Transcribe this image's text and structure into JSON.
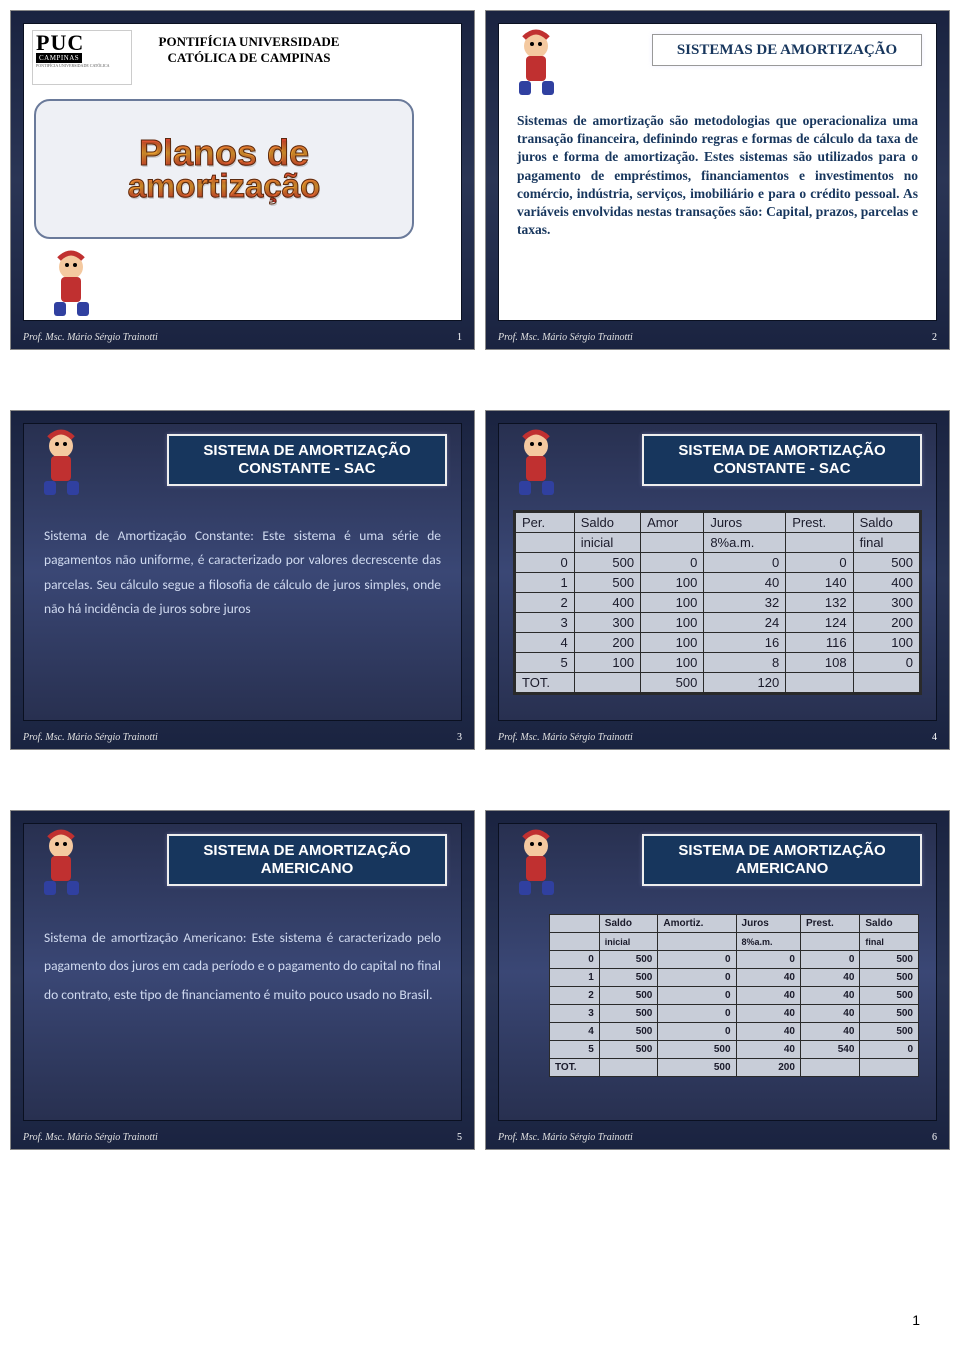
{
  "logo": {
    "puc": "PUC",
    "campinas": "CAMPINAS",
    "sub": "PONTIFÍCIA UNIVERSIDADE CATÓLICA"
  },
  "university": "PONTIFÍCIA UNIVERSIDADE CATÓLICA DE CAMPINAS",
  "footer_author": "Prof. Msc. Mário Sérgio Trainotti",
  "page_number": "1",
  "slide1": {
    "num": "1",
    "wordart1": "Planos de",
    "wordart2": "amortização"
  },
  "slide2": {
    "num": "2",
    "title": "SISTEMAS DE AMORTIZAÇÃO",
    "body": "Sistemas de amortização são metodologias que operacionaliza uma transação financeira, definindo regras e formas de cálculo da taxa de juros e forma de amortização. Estes sistemas são utilizados para o pagamento de empréstimos, financiamentos e investimentos   no comércio, indústria, serviços, imobiliário e para o crédito pessoal. As variáveis envolvidas nestas transações são: Capital, prazos, parcelas e taxas."
  },
  "slide3": {
    "num": "3",
    "title_l1": "SISTEMA DE AMORTIZAÇÃO",
    "title_l2": "CONSTANTE - SAC",
    "body": "Sistema de Amortização Constante: Este sistema é uma série de pagamentos não uniforme, é caracterizado por valores decrescente das parcelas. Seu cálculo segue a filosofia de cálculo de juros simples, onde não há incidência de juros sobre juros"
  },
  "slide4": {
    "num": "4",
    "title_l1": "SISTEMA DE AMORTIZAÇÃO",
    "title_l2": "CONSTANTE - SAC",
    "headers1": [
      "Per.",
      "Saldo",
      "Amor",
      "Juros",
      "Prest.",
      "Saldo"
    ],
    "headers2": [
      "",
      "inicial",
      "",
      "8%a.m.",
      "",
      "final"
    ],
    "rows": [
      [
        "0",
        "500",
        "0",
        "0",
        "0",
        "500"
      ],
      [
        "1",
        "500",
        "100",
        "40",
        "140",
        "400"
      ],
      [
        "2",
        "400",
        "100",
        "32",
        "132",
        "300"
      ],
      [
        "3",
        "300",
        "100",
        "24",
        "124",
        "200"
      ],
      [
        "4",
        "200",
        "100",
        "16",
        "116",
        "100"
      ],
      [
        "5",
        "100",
        "100",
        "8",
        "108",
        "0"
      ]
    ],
    "total": [
      "TOT.",
      "",
      "500",
      "120",
      "",
      ""
    ]
  },
  "slide5": {
    "num": "5",
    "title_l1": "SISTEMA DE AMORTIZAÇÃO",
    "title_l2": "AMERICANO",
    "body": "Sistema de amortização Americano: Este sistema é caracterizado pelo pagamento dos juros em cada período e o pagamento do capital no final do contrato, este tipo de financiamento é muito pouco usado no Brasil."
  },
  "slide6": {
    "num": "6",
    "title_l1": "SISTEMA DE AMORTIZAÇÃO",
    "title_l2": "AMERICANO",
    "headers1": [
      "",
      "Saldo",
      "Amortiz.",
      "Juros",
      "Prest.",
      "Saldo"
    ],
    "headers2": [
      "",
      "inicial",
      "",
      "8%a.m.",
      "",
      "final"
    ],
    "rows": [
      [
        "0",
        "500",
        "0",
        "0",
        "0",
        "500"
      ],
      [
        "1",
        "500",
        "0",
        "40",
        "40",
        "500"
      ],
      [
        "2",
        "500",
        "0",
        "40",
        "40",
        "500"
      ],
      [
        "3",
        "500",
        "0",
        "40",
        "40",
        "500"
      ],
      [
        "4",
        "500",
        "0",
        "40",
        "40",
        "500"
      ],
      [
        "5",
        "500",
        "500",
        "40",
        "540",
        "0"
      ]
    ],
    "total": [
      "TOT.",
      "",
      "500",
      "200",
      "",
      ""
    ]
  }
}
